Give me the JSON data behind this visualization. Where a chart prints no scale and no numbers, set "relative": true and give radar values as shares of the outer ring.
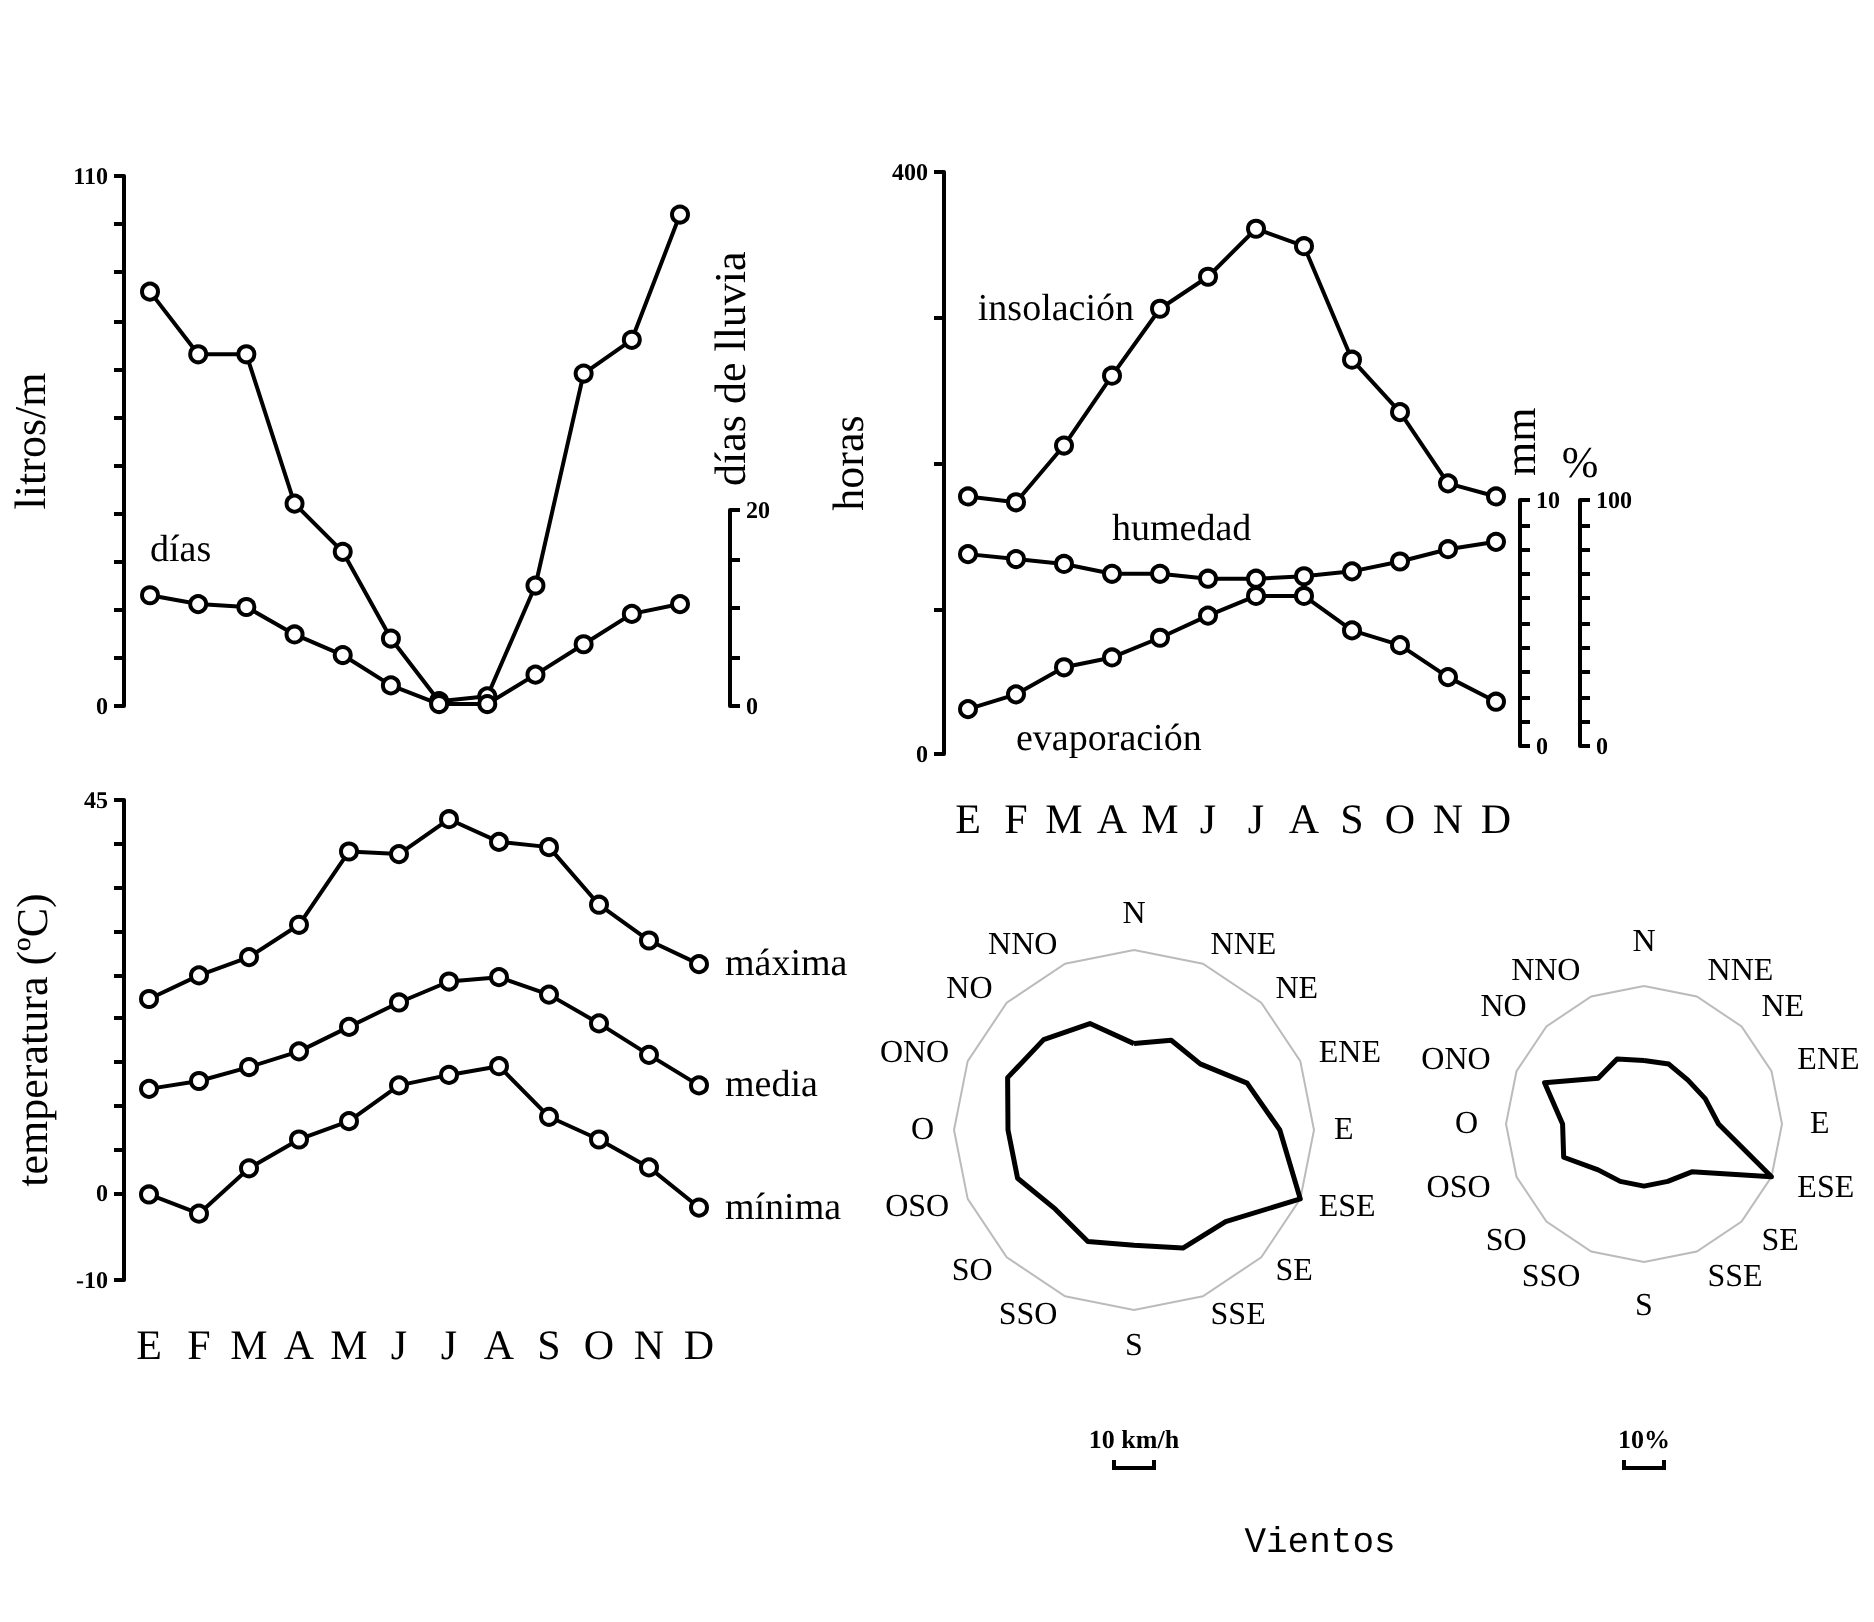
{
  "chart_data": [
    {
      "type": "line",
      "ylabel": "litros/m",
      "y2label": "días de lluvia",
      "categories": [
        null,
        null,
        null,
        null,
        null,
        null,
        null,
        null,
        null,
        null,
        null,
        null
      ],
      "tick_labels": "y",
      "marker": "circle",
      "grid": false,
      "legend": false,
      "ylim": [
        0,
        110
      ],
      "yticks": [
        0,
        {
          "value": 10,
          "label": null
        },
        {
          "value": 20,
          "label": null
        },
        {
          "value": 30,
          "label": null
        },
        {
          "value": 40,
          "label": null
        },
        {
          "value": 50,
          "label": null
        },
        {
          "value": 60,
          "label": null
        },
        {
          "value": 70,
          "label": null
        },
        {
          "value": 80,
          "label": null
        },
        {
          "value": 90,
          "label": null
        },
        {
          "value": 100,
          "label": null
        },
        110
      ],
      "y2lim": [
        0,
        20
      ],
      "y2ticks": [
        0,
        {
          "value": 5,
          "label": null
        },
        {
          "value": 10,
          "label": null
        },
        {
          "value": 15,
          "label": null
        },
        20
      ],
      "series": [
        {
          "color": "#000000",
          "values": [
            86,
            73,
            73,
            42,
            32,
            14,
            1,
            2,
            25,
            69,
            76,
            102
          ]
        },
        {
          "name": "días",
          "color": "#000000",
          "axis": "y2",
          "values": [
            11.3,
            10.4,
            10.1,
            7.3,
            5.2,
            2.1,
            0.2,
            0.2,
            3.2,
            6.3,
            9.4,
            10.4
          ]
        }
      ]
    },
    {
      "type": "line",
      "ylabel": "horas",
      "y2label": "mm",
      "y3label": "%",
      "categories": [
        "E",
        "F",
        "M",
        "A",
        "M",
        "J",
        "J",
        "A",
        "S",
        "O",
        "N",
        "D"
      ],
      "marker": "circle",
      "grid": false,
      "legend": false,
      "ylim": [
        0,
        400
      ],
      "yticks": [
        0,
        {
          "value": 100,
          "label": null
        },
        {
          "value": 200,
          "label": null
        },
        {
          "value": 300,
          "label": null
        },
        400
      ],
      "y2lim": [
        0,
        10
      ],
      "y2ticks": [
        0,
        {
          "value": 1,
          "label": null
        },
        {
          "value": 2,
          "label": null
        },
        {
          "value": 3,
          "label": null
        },
        {
          "value": 4,
          "label": null
        },
        {
          "value": 5,
          "label": null
        },
        {
          "value": 6,
          "label": null
        },
        {
          "value": 7,
          "label": null
        },
        {
          "value": 8,
          "label": null
        },
        {
          "value": 9,
          "label": null
        },
        10
      ],
      "y3lim": [
        0,
        100
      ],
      "y3ticks": [
        0,
        {
          "value": 10,
          "label": null
        },
        {
          "value": 20,
          "label": null
        },
        {
          "value": 30,
          "label": null
        },
        {
          "value": 40,
          "label": null
        },
        {
          "value": 50,
          "label": null
        },
        {
          "value": 60,
          "label": null
        },
        {
          "value": 70,
          "label": null
        },
        {
          "value": 80,
          "label": null
        },
        {
          "value": 90,
          "label": null
        },
        100
      ],
      "series": [
        {
          "name": "insolación",
          "color": "#000000",
          "values": [
            177,
            173,
            212,
            260,
            306,
            328,
            361,
            349,
            271,
            235,
            186,
            177
          ]
        },
        {
          "name": "humedad",
          "color": "#000000",
          "axis": "y3",
          "values": [
            78,
            76,
            74,
            70,
            70,
            68,
            68,
            69,
            71,
            75,
            80,
            83
          ]
        },
        {
          "name": "evaporación",
          "color": "#000000",
          "axis": "y2",
          "values": [
            1.5,
            2.1,
            3.2,
            3.6,
            4.4,
            5.3,
            6.1,
            6.1,
            4.7,
            4.1,
            2.8,
            1.8
          ]
        }
      ]
    },
    {
      "type": "line",
      "ylabel": "temperatura (ºC)",
      "categories": [
        "E",
        "F",
        "M",
        "A",
        "M",
        "J",
        "J",
        "A",
        "S",
        "O",
        "N",
        "D"
      ],
      "marker": "circle",
      "grid": false,
      "legend": false,
      "ylim": [
        -10,
        45
      ],
      "yticks": [
        -10,
        0,
        {
          "value": 5,
          "label": null
        },
        {
          "value": 10,
          "label": null
        },
        {
          "value": 15,
          "label": null
        },
        {
          "value": 20,
          "label": null
        },
        {
          "value": 25,
          "label": null
        },
        {
          "value": 30,
          "label": null
        },
        {
          "value": 35,
          "label": null
        },
        {
          "value": 40,
          "label": null
        },
        45
      ],
      "series": [
        {
          "name": "máxima",
          "color": "#000000",
          "values": [
            22.2,
            24.9,
            27,
            30.7,
            39.1,
            38.8,
            42.8,
            40.2,
            39.6,
            33,
            28.9,
            26.2
          ]
        },
        {
          "name": "media",
          "color": "#000000",
          "values": [
            11.9,
            12.8,
            14.4,
            16.2,
            19,
            21.8,
            24.2,
            24.7,
            22.7,
            19.4,
            15.8,
            12.3
          ]
        },
        {
          "name": "mínima",
          "color": "#000000",
          "values": [
            -0.2,
            -2.4,
            2.8,
            6.1,
            8.2,
            12.3,
            13.5,
            14.5,
            8.7,
            6.1,
            2.9,
            -1.7
          ]
        }
      ]
    },
    {
      "type": "radar",
      "relative": true,
      "categories": [
        "N",
        "NNE",
        "NE",
        "ENE",
        "E",
        "ESE",
        "SE",
        "SSE",
        "S",
        "SSO",
        "SO",
        "OSO",
        "O",
        "ONO",
        "NO",
        "NNO"
      ],
      "color": "#000000",
      "values": [
        0.48,
        0.54,
        0.52,
        0.68,
        0.81,
        1,
        0.72,
        0.71,
        0.64,
        0.67,
        0.62,
        0.7,
        0.7,
        0.76,
        0.71,
        0.64
      ],
      "annotations": [
        "10 km/h"
      ]
    },
    {
      "type": "radar",
      "relative": true,
      "categories": [
        "N",
        "NNE",
        "NE",
        "ENE",
        "E",
        "ESE",
        "SE",
        "SSE",
        "S",
        "SSO",
        "SO",
        "OSO",
        "O",
        "ONO",
        "NO",
        "NNO"
      ],
      "color": "#000000",
      "values": [
        0.46,
        0.47,
        0.45,
        0.48,
        0.54,
        1,
        0.49,
        0.45,
        0.45,
        0.45,
        0.47,
        0.63,
        0.59,
        0.78,
        0.47,
        0.51
      ],
      "annotations": [
        "10%",
        "Vientos"
      ]
    }
  ]
}
